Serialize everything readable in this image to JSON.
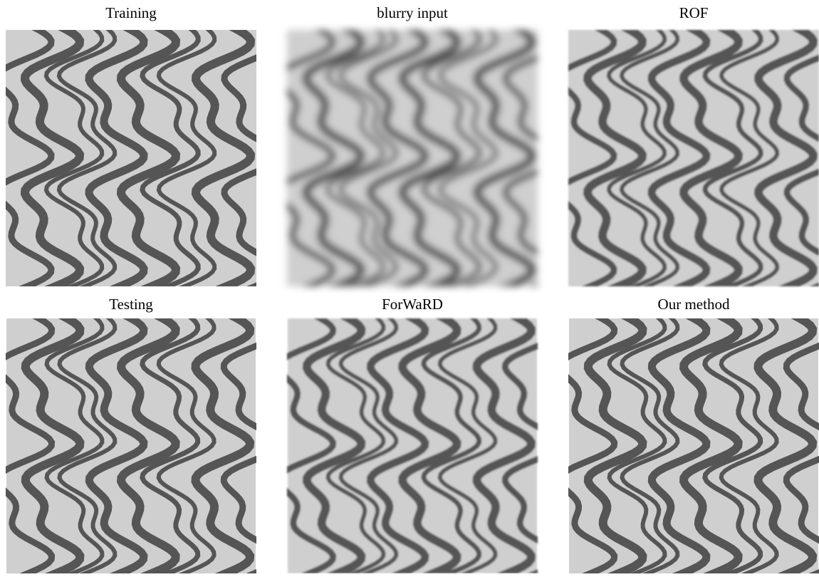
{
  "figure": {
    "panels": [
      {
        "title": "Training"
      },
      {
        "title": "blurry input"
      },
      {
        "title": "ROF"
      },
      {
        "title": "Testing"
      },
      {
        "title": "ForWaRD"
      },
      {
        "title": "Our method"
      }
    ]
  }
}
